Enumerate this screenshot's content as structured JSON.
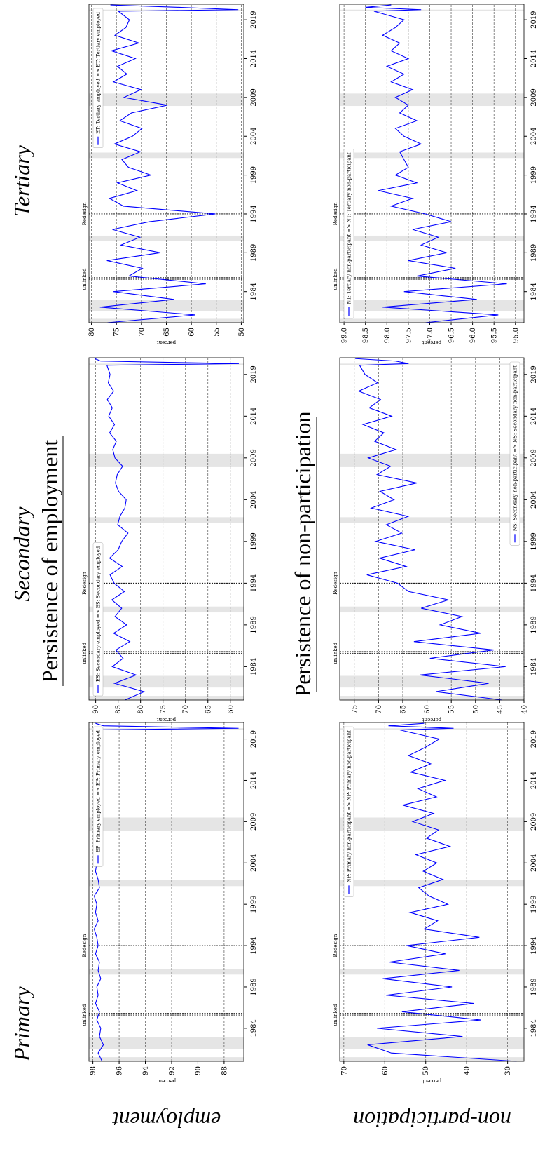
{
  "labels": {
    "primary": "Primary",
    "secondary": "Secondary",
    "tertiary": "Tertiary",
    "employment_title": "Persistence of employment",
    "nonpart_title": "Persistence of non-participation",
    "row_employment": "employment",
    "row_nonpart": "non-participation"
  },
  "chart_data": [
    {
      "type": "line",
      "ylabel": "percent",
      "legend": "upper right",
      "grid": true,
      "xlim": [
        1980,
        2021
      ],
      "xticks": [
        1984,
        1989,
        1994,
        1999,
        2004,
        2009,
        2014,
        2019
      ],
      "ylim": [
        86.5,
        98.3
      ],
      "yticks": [
        88,
        90,
        92,
        94,
        96,
        98
      ],
      "shaded": [
        [
          1980.0,
          1980.5
        ],
        [
          1981.5,
          1982.9
        ],
        [
          1990.5,
          1991.2
        ],
        [
          2001.2,
          2001.9
        ],
        [
          2007.9,
          2009.5
        ],
        [
          2020.1,
          2020.3
        ]
      ],
      "vlines": [
        1985.6,
        1985.8,
        1994.0
      ],
      "annotations": [
        {
          "x": 1985.6,
          "text": "unlinked"
        },
        {
          "x": 1994.0,
          "text": "Redesign"
        }
      ],
      "x": [
        1980,
        1981,
        1982,
        1983,
        1984,
        1985,
        1986,
        1987,
        1988,
        1989,
        1990,
        1991,
        1992,
        1993,
        1994,
        1995,
        1996,
        1997,
        1998,
        1999,
        2000,
        2001,
        2002,
        2003,
        2004,
        2005,
        2006,
        2007,
        2008,
        2009,
        2010,
        2011,
        2012,
        2013,
        2014,
        2015,
        2016,
        2017,
        2018,
        2019,
        2020.1,
        2020.3,
        2020.6,
        2020.9
      ],
      "series": [
        {
          "name": "EP: Primary employed  =>  EP: Primary employed",
          "color": "#0000ff",
          "values": [
            97.3,
            97.6,
            97.2,
            97.5,
            97.4,
            97.7,
            97.5,
            97.8,
            97.6,
            97.7,
            97.4,
            97.6,
            97.5,
            97.8,
            97.6,
            97.7,
            97.9,
            97.6,
            97.8,
            97.7,
            97.9,
            97.5,
            97.6,
            97.8,
            97.7,
            97.9,
            97.8,
            97.6,
            97.5,
            97.3,
            97.6,
            97.7,
            97.8,
            97.6,
            97.9,
            97.7,
            97.8,
            97.9,
            97.7,
            97.8,
            97.9,
            86.9,
            97.2,
            97.8
          ]
        }
      ]
    },
    {
      "type": "line",
      "ylabel": "percent",
      "legend": "upper left",
      "grid": true,
      "xlim": [
        1980,
        2021
      ],
      "xticks": [
        1984,
        1989,
        1994,
        1999,
        2004,
        2009,
        2014,
        2019
      ],
      "ylim": [
        57,
        91.5
      ],
      "yticks": [
        60,
        65,
        70,
        75,
        80,
        85,
        90
      ],
      "shaded": [
        [
          1980.0,
          1980.5
        ],
        [
          1981.5,
          1982.9
        ],
        [
          1990.5,
          1991.2
        ],
        [
          2001.2,
          2001.9
        ],
        [
          2007.9,
          2009.5
        ],
        [
          2020.1,
          2020.3
        ]
      ],
      "vlines": [
        1985.6,
        1985.8,
        1994.0
      ],
      "annotations": [
        {
          "x": 1985.6,
          "text": "unlinked"
        },
        {
          "x": 1994.0,
          "text": "Redesign"
        }
      ],
      "x": [
        1980,
        1981,
        1982,
        1983,
        1984,
        1985,
        1986,
        1987,
        1988,
        1989,
        1990,
        1991,
        1992,
        1993,
        1994,
        1995,
        1996,
        1997,
        1998,
        1999,
        2000,
        2001,
        2002,
        2003,
        2004,
        2005,
        2006,
        2007,
        2008,
        2009,
        2010,
        2011,
        2012,
        2013,
        2014,
        2015,
        2016,
        2017,
        2018,
        2019,
        2020.1,
        2020.3,
        2020.6,
        2020.9
      ],
      "series": [
        {
          "name": "ES: Secondary employed  =>  ES: Secondary employed",
          "color": "#0000ff",
          "values": [
            83.5,
            79.2,
            85.8,
            81.0,
            86.3,
            83.9,
            85.5,
            82.4,
            86.0,
            83.1,
            85.7,
            84.2,
            86.4,
            83.6,
            85.9,
            86.8,
            84.1,
            86.9,
            85.0,
            84.2,
            82.8,
            85.1,
            84.6,
            83.5,
            83.2,
            84.9,
            85.6,
            85.2,
            84.0,
            85.7,
            86.2,
            85.4,
            86.9,
            85.8,
            87.1,
            86.3,
            87.4,
            86.0,
            87.2,
            86.8,
            87.5,
            58.1,
            88.9,
            90.2
          ]
        }
      ]
    },
    {
      "type": "line",
      "ylabel": "percent",
      "legend": "upper right",
      "grid": true,
      "xlim": [
        1980,
        2021
      ],
      "xticks": [
        1984,
        1989,
        1994,
        1999,
        2004,
        2009,
        2014,
        2019
      ],
      "ylim": [
        49.5,
        80.5
      ],
      "yticks": [
        50,
        55,
        60,
        65,
        70,
        75,
        80
      ],
      "shaded": [
        [
          1980.0,
          1980.5
        ],
        [
          1981.5,
          1982.9
        ],
        [
          1990.5,
          1991.2
        ],
        [
          2001.2,
          2001.9
        ],
        [
          2007.9,
          2009.5
        ],
        [
          2020.1,
          2020.3
        ]
      ],
      "vlines": [
        1985.6,
        1985.8,
        1994.0
      ],
      "annotations": [
        {
          "x": 1985.6,
          "text": "unlinked"
        },
        {
          "x": 1994.0,
          "text": "Redesign"
        }
      ],
      "x": [
        1980,
        1981,
        1982,
        1983,
        1984,
        1985,
        1986,
        1987,
        1988,
        1989,
        1990,
        1991,
        1992,
        1993,
        1994,
        1995,
        1996,
        1997,
        1998,
        1999,
        2000,
        2001,
        2002,
        2003,
        2004,
        2005,
        2006,
        2007,
        2008,
        2009,
        2010,
        2011,
        2012,
        2013,
        2014,
        2015,
        2016,
        2017,
        2018,
        2019,
        2020.1,
        2020.3,
        2020.6,
        2020.9
      ],
      "series": [
        {
          "name": "ET: Tertiary employed  =>  ET: Tertiary employed",
          "color": "#0000ff",
          "values": [
            76.8,
            59.2,
            78.3,
            63.5,
            75.6,
            57.1,
            72.5,
            69.8,
            76.9,
            66.2,
            74.1,
            70.3,
            75.8,
            68.4,
            55.2,
            73.6,
            76.4,
            70.9,
            74.8,
            68.1,
            72.6,
            73.9,
            70.2,
            75.4,
            71.8,
            69.9,
            74.3,
            72.0,
            64.8,
            73.5,
            70.1,
            75.6,
            72.9,
            74.8,
            71.2,
            76.0,
            70.5,
            75.3,
            73.1,
            72.4,
            74.6,
            50.6,
            62.4,
            76.2
          ]
        }
      ]
    },
    {
      "type": "line",
      "ylabel": "percent",
      "legend": "upper right",
      "grid": true,
      "xlim": [
        1980,
        2021
      ],
      "xticks": [
        1984,
        1989,
        1994,
        1999,
        2004,
        2009,
        2014,
        2019
      ],
      "ylim": [
        26,
        71
      ],
      "yticks": [
        30,
        40,
        50,
        60,
        70
      ],
      "shaded": [
        [
          1980.0,
          1980.5
        ],
        [
          1981.5,
          1982.9
        ],
        [
          1990.5,
          1991.2
        ],
        [
          2001.2,
          2001.9
        ],
        [
          2007.9,
          2009.5
        ],
        [
          2020.1,
          2020.3
        ]
      ],
      "vlines": [
        1985.6,
        1985.8,
        1994.0
      ],
      "annotations": [
        {
          "x": 1985.6,
          "text": "unlinked"
        },
        {
          "x": 1994.0,
          "text": "Redesign"
        }
      ],
      "x": [
        1980,
        1981,
        1982,
        1983,
        1984,
        1985,
        1986,
        1987,
        1988,
        1989,
        1990,
        1991,
        1992,
        1993,
        1994,
        1995,
        1996,
        1997,
        1998,
        1999,
        2000,
        2001,
        2002,
        2003,
        2004,
        2005,
        2006,
        2007,
        2008,
        2009,
        2010,
        2011,
        2012,
        2013,
        2014,
        2015,
        2016,
        2017,
        2018,
        2019,
        2020.1,
        2020.3,
        2020.6,
        2020.9
      ],
      "series": [
        {
          "name": "NP: Primary non-participant  =>  NP: Primary non-participant",
          "color": "#0000ff",
          "values": [
            27.8,
            58.4,
            64.2,
            41.0,
            61.9,
            36.5,
            55.8,
            38.2,
            59.7,
            43.6,
            60.5,
            41.8,
            58.9,
            45.2,
            54.7,
            36.9,
            50.4,
            47.1,
            53.8,
            44.6,
            49.2,
            51.7,
            45.8,
            50.6,
            47.3,
            52.4,
            44.1,
            49.8,
            46.9,
            53.2,
            48.1,
            55.6,
            47.4,
            51.9,
            45.3,
            53.7,
            48.8,
            54.2,
            50.1,
            46.7,
            56.3,
            43.2,
            59.1,
            50.4
          ]
        }
      ]
    },
    {
      "type": "line",
      "ylabel": "percent",
      "legend": "lower right",
      "grid": true,
      "xlim": [
        1980,
        2021
      ],
      "xticks": [
        1984,
        1989,
        1994,
        1999,
        2004,
        2009,
        2014,
        2019
      ],
      "ylim": [
        40,
        78
      ],
      "yticks": [
        40,
        45,
        50,
        55,
        60,
        65,
        70,
        75
      ],
      "shaded": [
        [
          1980.0,
          1980.5
        ],
        [
          1981.5,
          1982.9
        ],
        [
          1990.5,
          1991.2
        ],
        [
          2001.2,
          2001.9
        ],
        [
          2007.9,
          2009.5
        ],
        [
          2020.1,
          2020.3
        ]
      ],
      "vlines": [
        1985.6,
        1985.8,
        1994.0
      ],
      "annotations": [
        {
          "x": 1985.6,
          "text": "unlinked"
        },
        {
          "x": 1994.0,
          "text": "Redesign"
        }
      ],
      "x": [
        1980,
        1981,
        1982,
        1983,
        1984,
        1985,
        1986,
        1987,
        1988,
        1989,
        1990,
        1991,
        1992,
        1993,
        1994,
        1995,
        1996,
        1997,
        1998,
        1999,
        2000,
        2001,
        2002,
        2003,
        2004,
        2005,
        2006,
        2007,
        2008,
        2009,
        2010,
        2011,
        2012,
        2013,
        2014,
        2015,
        2016,
        2017,
        2018,
        2019,
        2020.1,
        2020.3,
        2020.6,
        2020.9
      ],
      "series": [
        {
          "name": "NS: Secondary non-participant  =>  NS: Secondary non-participant",
          "color": "#0000ff",
          "values": [
            44.5,
            58.2,
            47.3,
            61.5,
            43.8,
            59.4,
            46.2,
            62.7,
            48.9,
            57.3,
            52.8,
            61.2,
            55.6,
            63.8,
            66.1,
            72.4,
            64.3,
            69.8,
            62.5,
            70.6,
            65.2,
            68.4,
            63.9,
            71.5,
            66.8,
            69.7,
            62.1,
            70.3,
            67.5,
            72.1,
            66.4,
            70.8,
            68.9,
            73.2,
            67.3,
            71.9,
            69.6,
            74.1,
            70.2,
            72.8,
            73.9,
            63.8,
            66.5,
            74.8
          ]
        }
      ]
    },
    {
      "type": "line",
      "ylabel": "percent",
      "legend": "upper left",
      "grid": true,
      "xlim": [
        1980,
        2021
      ],
      "xticks": [
        1984,
        1989,
        1994,
        1999,
        2004,
        2009,
        2014,
        2019
      ],
      "ylim": [
        94.8,
        99.1
      ],
      "yticks": [
        {
          "value": 95,
          "label": "95.0"
        },
        95.5,
        {
          "value": 96,
          "label": "96.0"
        },
        96.5,
        {
          "value": 97,
          "label": "97.0"
        },
        97.5,
        {
          "value": 98,
          "label": "98.0"
        },
        98.5,
        {
          "value": 99,
          "label": "99.0"
        }
      ],
      "shaded": [
        [
          1980.0,
          1980.5
        ],
        [
          1981.5,
          1982.9
        ],
        [
          1990.5,
          1991.2
        ],
        [
          2001.2,
          2001.9
        ],
        [
          2007.9,
          2009.5
        ],
        [
          2020.1,
          2020.3
        ]
      ],
      "vlines": [
        1985.6,
        1985.8,
        1994.0
      ],
      "annotations": [
        {
          "x": 1985.6,
          "text": "unlinked"
        },
        {
          "x": 1994.0,
          "text": "Redesign"
        }
      ],
      "x": [
        1980,
        1981,
        1982,
        1983,
        1984,
        1985,
        1986,
        1987,
        1988,
        1989,
        1990,
        1991,
        1992,
        1993,
        1994,
        1995,
        1996,
        1997,
        1998,
        1999,
        2000,
        2001,
        2002,
        2003,
        2004,
        2005,
        2006,
        2007,
        2008,
        2009,
        2010,
        2011,
        2012,
        2013,
        2014,
        2015,
        2016,
        2017,
        2018,
        2019,
        2020.1,
        2020.3,
        2020.6,
        2020.9
      ],
      "series": [
        {
          "name": "NT: Tertiary non-participant  =>  NT: Tertiary non-participant",
          "color": "#0000ff",
          "values": [
            97.1,
            95.4,
            98.1,
            95.9,
            97.6,
            95.2,
            97.3,
            96.4,
            97.5,
            96.6,
            97.2,
            96.8,
            97.4,
            96.5,
            97.1,
            97.9,
            97.4,
            98.2,
            97.3,
            97.8,
            97.5,
            97.6,
            97.7,
            97.2,
            97.6,
            97.8,
            97.3,
            97.7,
            97.5,
            97.8,
            97.4,
            97.9,
            97.6,
            98.0,
            97.5,
            97.9,
            97.7,
            98.1,
            97.8,
            97.6,
            98.3,
            97.2,
            98.5,
            97.9
          ]
        }
      ]
    }
  ]
}
